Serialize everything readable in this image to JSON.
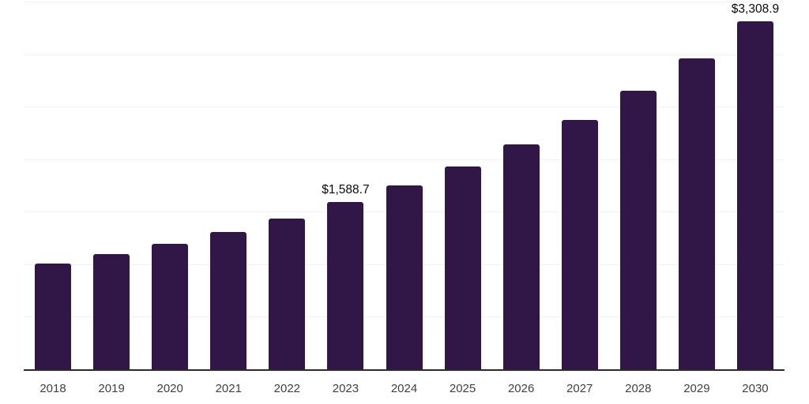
{
  "chart_data": {
    "type": "bar",
    "title": "",
    "xlabel": "",
    "ylabel": "",
    "categories": [
      "2018",
      "2019",
      "2020",
      "2021",
      "2022",
      "2023",
      "2024",
      "2025",
      "2026",
      "2027",
      "2028",
      "2029",
      "2030"
    ],
    "values": [
      1010,
      1100,
      1195,
      1305,
      1435,
      1588.7,
      1750,
      1930,
      2140,
      2375,
      2650,
      2960,
      3308.9
    ],
    "data_labels": {
      "2023": "$1,588.7",
      "2030": "$3,308.9"
    },
    "ylim": [
      0,
      3500
    ],
    "gridline_step": 500,
    "grid": true,
    "legend": false,
    "colors": {
      "bar": "#311747",
      "axis_line": "#2b2b2b",
      "gridline": "#f2f2f2",
      "tick_label": "#404040",
      "data_label": "#0a0a0a"
    }
  }
}
